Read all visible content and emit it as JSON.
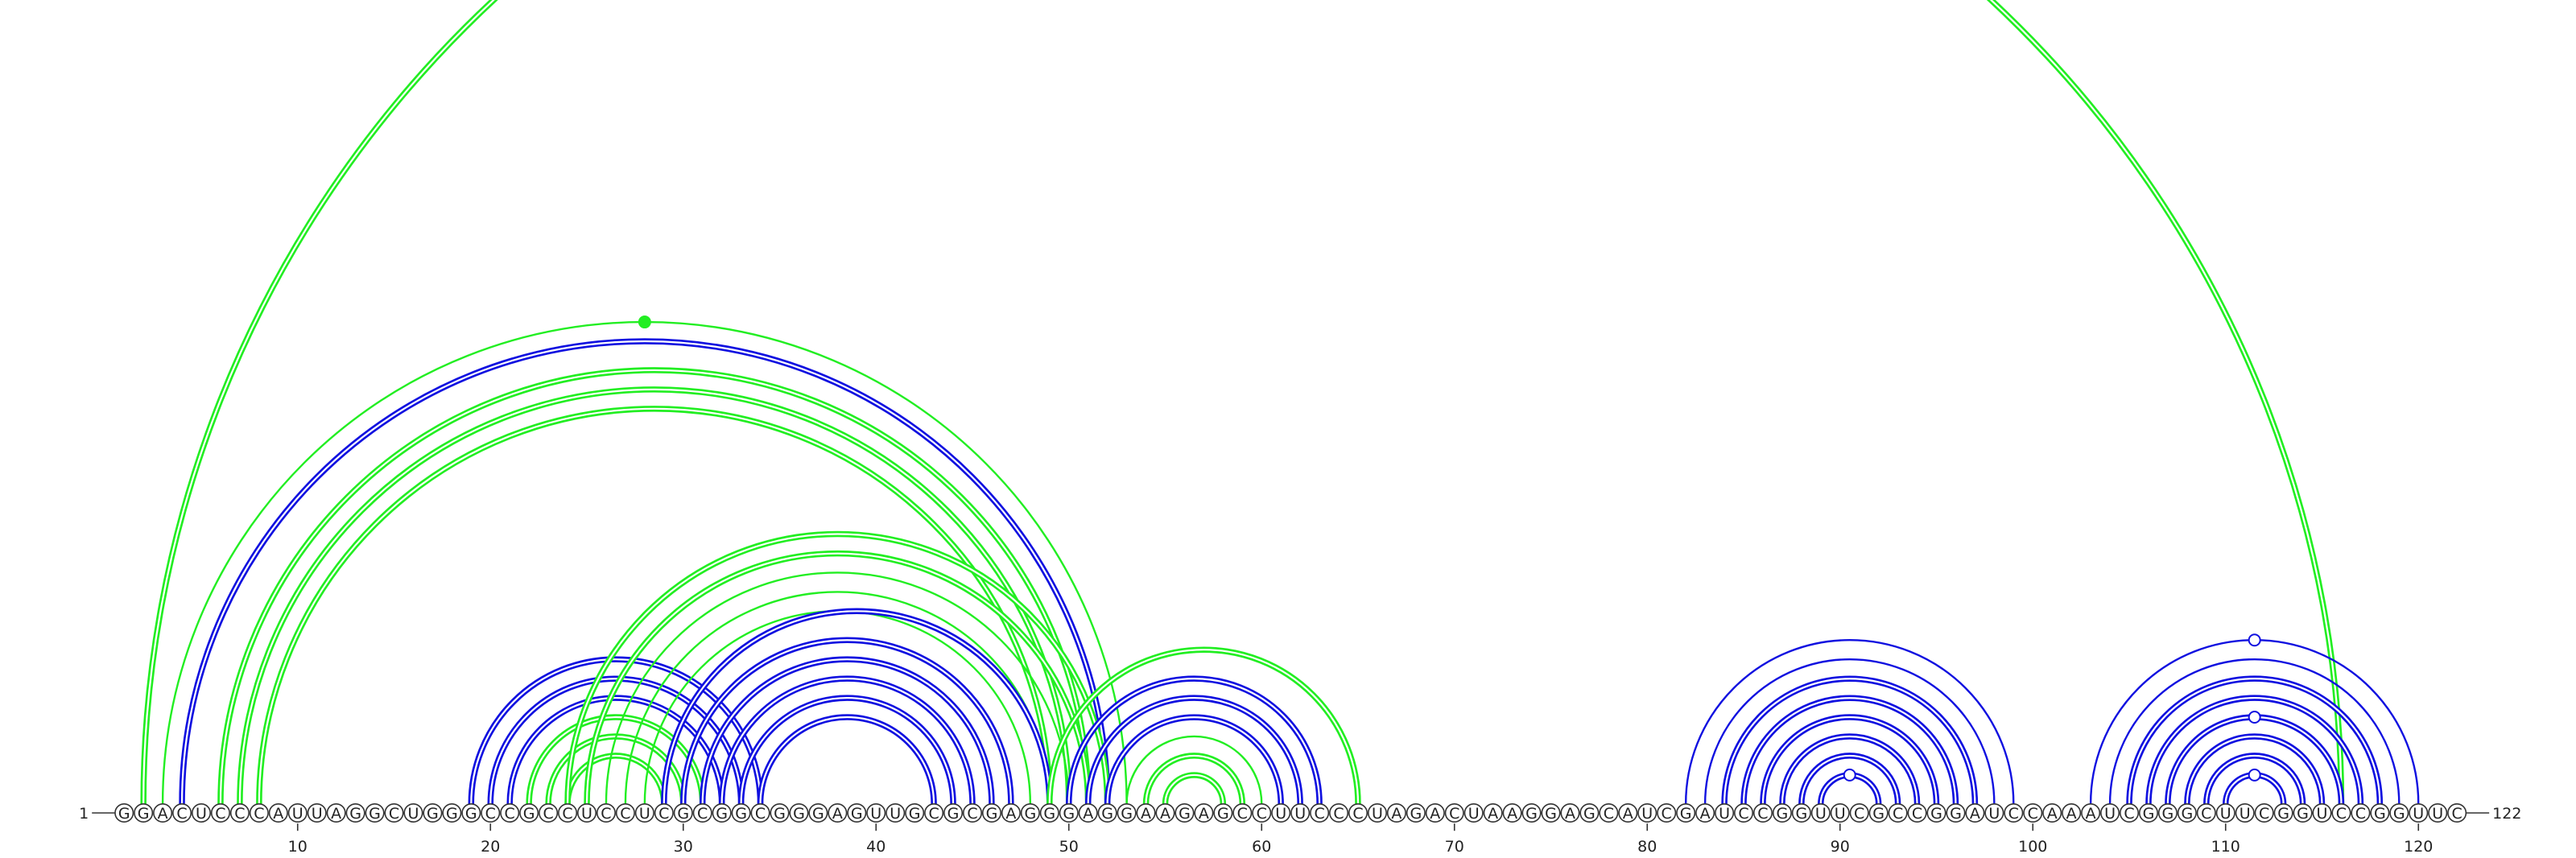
{
  "sequence": "GGACUCCCAUUAGGCUGGGCCGCCUCCUCGCGGCGGGAGUUGCGCGAGGGAGGAAGAGCCUUCCCUAGACUAAGGAGCAUCGAUCCGGUUCGCCGGAUCCAAAUCGGGCUUCGGUCCGGUUC",
  "start_label": "1",
  "end_label": "122",
  "ticks": [
    "10",
    "20",
    "30",
    "40",
    "50",
    "60",
    "70",
    "80",
    "90",
    "100",
    "110",
    "120"
  ],
  "colors": {
    "blue": "#1010e0",
    "green": "#22ee22"
  },
  "arcs": [
    {
      "i": 2,
      "j": 116,
      "color": "green",
      "double": true
    },
    {
      "i": 3,
      "j": 53,
      "color": "green",
      "double": false
    },
    {
      "i": 4,
      "j": 52,
      "color": "blue",
      "double": true
    },
    {
      "i": 6,
      "j": 51,
      "color": "green",
      "double": true
    },
    {
      "i": 7,
      "j": 50,
      "color": "green",
      "double": true
    },
    {
      "i": 8,
      "j": 49,
      "color": "green",
      "double": true
    },
    {
      "i": 19,
      "j": 34,
      "color": "blue",
      "double": true
    },
    {
      "i": 20,
      "j": 33,
      "color": "blue",
      "double": true
    },
    {
      "i": 21,
      "j": 32,
      "color": "blue",
      "double": true
    },
    {
      "i": 22,
      "j": 31,
      "color": "green",
      "double": true
    },
    {
      "i": 23,
      "j": 30,
      "color": "green",
      "double": true
    },
    {
      "i": 24,
      "j": 29,
      "color": "green",
      "double": true
    },
    {
      "i": 24,
      "j": 52,
      "color": "green",
      "double": true
    },
    {
      "i": 25,
      "j": 51,
      "color": "green",
      "double": true
    },
    {
      "i": 26,
      "j": 50,
      "color": "green",
      "double": false
    },
    {
      "i": 27,
      "j": 49,
      "color": "green",
      "double": false
    },
    {
      "i": 28,
      "j": 48,
      "color": "green",
      "double": false
    },
    {
      "i": 29,
      "j": 49,
      "color": "blue",
      "double": true
    },
    {
      "i": 30,
      "j": 47,
      "color": "blue",
      "double": true
    },
    {
      "i": 31,
      "j": 46,
      "color": "blue",
      "double": true
    },
    {
      "i": 32,
      "j": 45,
      "color": "blue",
      "double": true
    },
    {
      "i": 33,
      "j": 44,
      "color": "blue",
      "double": true
    },
    {
      "i": 34,
      "j": 43,
      "color": "blue",
      "double": true
    },
    {
      "i": 49,
      "j": 65,
      "color": "green",
      "double": true
    },
    {
      "i": 50,
      "j": 63,
      "color": "blue",
      "double": true
    },
    {
      "i": 51,
      "j": 62,
      "color": "blue",
      "double": true
    },
    {
      "i": 52,
      "j": 61,
      "color": "blue",
      "double": true
    },
    {
      "i": 53,
      "j": 60,
      "color": "green",
      "double": false
    },
    {
      "i": 54,
      "j": 59,
      "color": "green",
      "double": true
    },
    {
      "i": 55,
      "j": 58,
      "color": "green",
      "double": true
    },
    {
      "i": 82,
      "j": 99,
      "color": "blue",
      "double": false
    },
    {
      "i": 83,
      "j": 98,
      "color": "blue",
      "double": false
    },
    {
      "i": 84,
      "j": 97,
      "color": "blue",
      "double": true
    },
    {
      "i": 85,
      "j": 96,
      "color": "blue",
      "double": true
    },
    {
      "i": 86,
      "j": 95,
      "color": "blue",
      "double": true
    },
    {
      "i": 87,
      "j": 94,
      "color": "blue",
      "double": true
    },
    {
      "i": 88,
      "j": 93,
      "color": "blue",
      "double": true
    },
    {
      "i": 89,
      "j": 92,
      "color": "blue",
      "double": true
    },
    {
      "i": 103,
      "j": 120,
      "color": "blue",
      "double": false
    },
    {
      "i": 104,
      "j": 119,
      "color": "blue",
      "double": false
    },
    {
      "i": 105,
      "j": 118,
      "color": "blue",
      "double": true
    },
    {
      "i": 106,
      "j": 117,
      "color": "blue",
      "double": true
    },
    {
      "i": 107,
      "j": 116,
      "color": "blue",
      "double": true
    },
    {
      "i": 108,
      "j": 115,
      "color": "blue",
      "double": true
    },
    {
      "i": 109,
      "j": 114,
      "color": "blue",
      "double": true
    },
    {
      "i": 110,
      "j": 113,
      "color": "blue",
      "double": true
    }
  ],
  "markers": [
    {
      "i": 3,
      "j": 53,
      "fill": "green"
    },
    {
      "i": 89,
      "j": 92,
      "fill": "white"
    },
    {
      "i": 103,
      "j": 120,
      "fill": "white"
    },
    {
      "i": 107,
      "j": 116,
      "fill": "white"
    },
    {
      "i": 110,
      "j": 113,
      "fill": "white"
    }
  ]
}
